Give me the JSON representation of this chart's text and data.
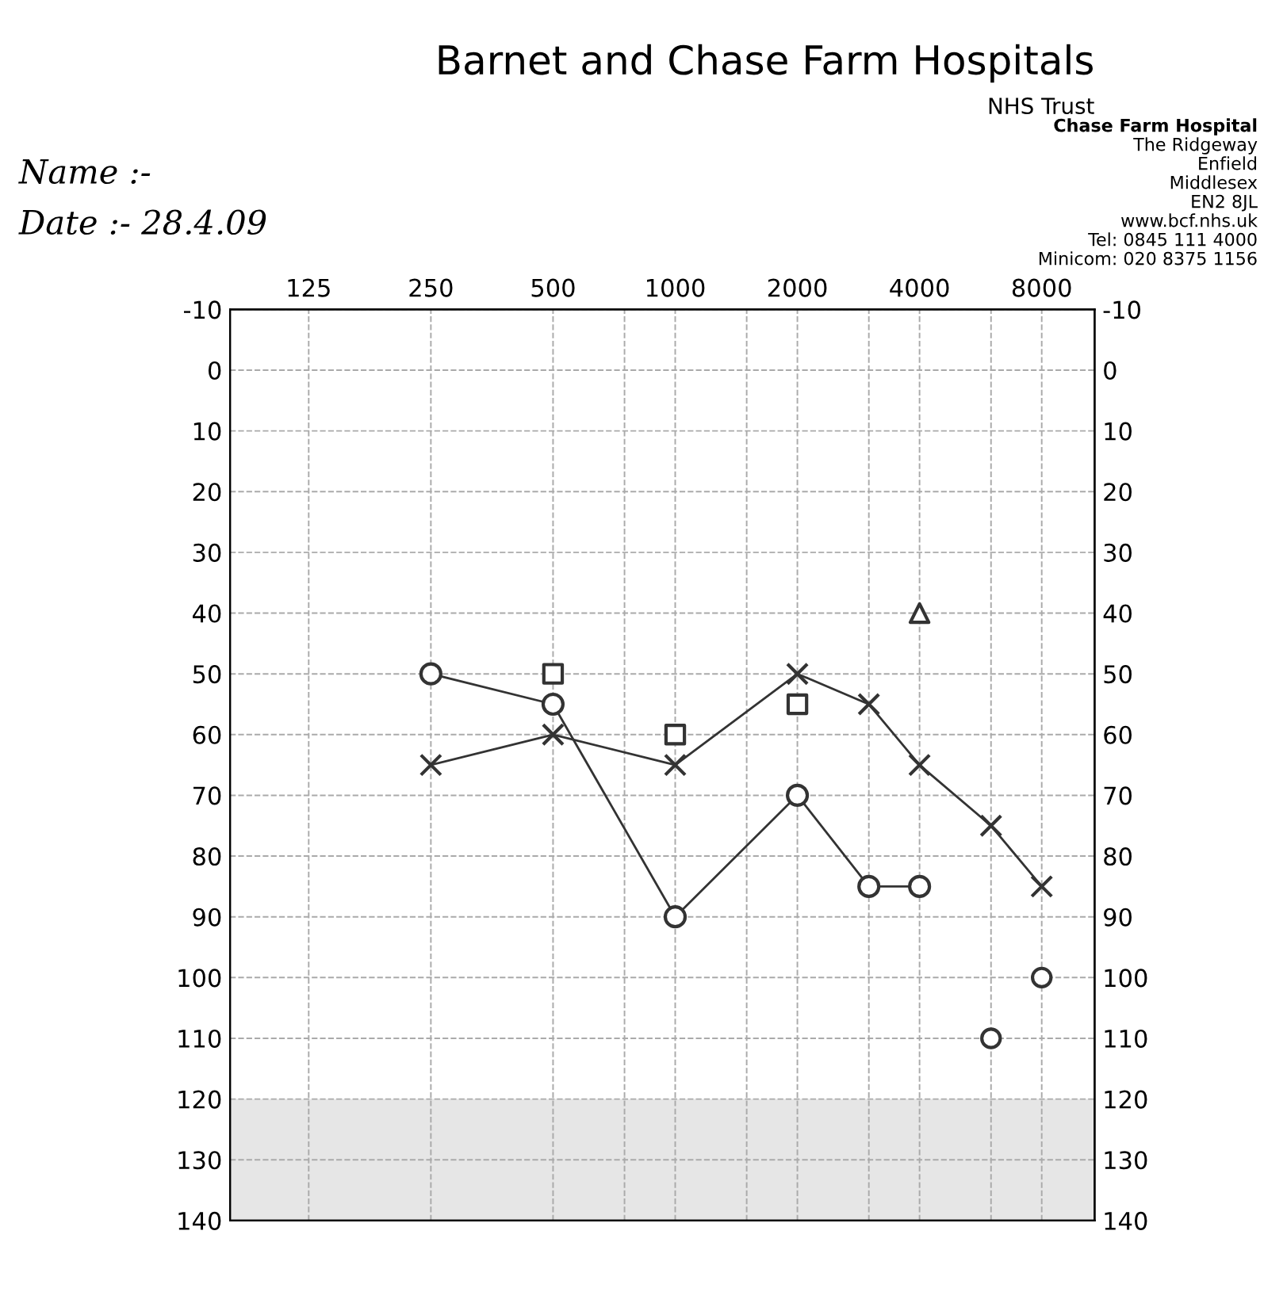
{
  "chart_data": {
    "type": "line",
    "title": "Barnet and Chase Farm Hospitals",
    "subtitle": "NHS Trust",
    "annotations": [
      "Name :-",
      "Date :- 28.4.09",
      "Chase Farm Hospital",
      "The Ridgeway",
      "Enfield",
      "Middlesex",
      "EN2 8JL",
      "www.bcf.nhs.uk",
      "Tel: 0845 111 4000",
      "Minicom: 020 8375 1156"
    ],
    "log": "x",
    "grid": true,
    "line_style": "solid",
    "xlim": [
      80,
      10800
    ],
    "xticks": [
      125,
      250,
      500,
      {
        "value": 750,
        "label": null
      },
      1000,
      {
        "value": 1500,
        "label": null
      },
      2000,
      {
        "value": 3000,
        "label": null
      },
      4000,
      {
        "value": 6000,
        "label": null
      },
      8000
    ],
    "ylim": [
      140,
      -10
    ],
    "yticks": [
      -10,
      0,
      10,
      20,
      30,
      40,
      50,
      60,
      70,
      80,
      90,
      100,
      110,
      120,
      130,
      140
    ],
    "y2lim": [
      140,
      -10
    ],
    "y2ticks": [
      -10,
      0,
      10,
      20,
      30,
      40,
      50,
      60,
      70,
      80,
      90,
      100,
      110,
      120,
      130,
      140
    ],
    "bands": [
      {
        "axis": "y",
        "from": 120,
        "to": 140,
        "color": "#e6e6e6"
      }
    ],
    "series": [
      {
        "marker": "circle",
        "color": "#333333",
        "x": [
          250,
          500,
          1000,
          2000,
          3000,
          4000
        ],
        "values": [
          50,
          55,
          90,
          70,
          85,
          85
        ]
      },
      {
        "type": "scatter",
        "marker": "circle",
        "color": "#333333",
        "x": [
          6000,
          8000
        ],
        "values": [
          110,
          100
        ]
      },
      {
        "marker": "cross",
        "color": "#333333",
        "x": [
          250,
          500,
          1000,
          2000,
          3000,
          4000,
          6000,
          8000
        ],
        "values": [
          65,
          60,
          65,
          50,
          55,
          65,
          75,
          85
        ]
      },
      {
        "type": "scatter",
        "marker": "square",
        "color": "#333333",
        "x": [
          500,
          1000,
          2000
        ],
        "values": [
          50,
          60,
          55
        ]
      },
      {
        "type": "scatter",
        "marker": "triangle",
        "color": "#333333",
        "x": [
          4000
        ],
        "values": [
          40
        ]
      }
    ]
  }
}
